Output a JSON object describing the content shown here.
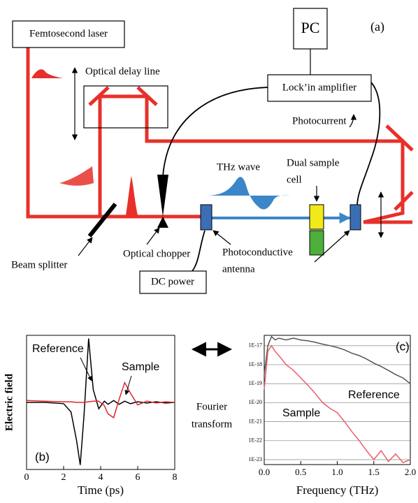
{
  "diagram": {
    "femtosecond_laser": "Femtosecond laser",
    "pc": "PC",
    "panel_a": "(a)",
    "optical_delay_line": "Optical delay line",
    "lockin_amplifier": "Lock’in amplifier",
    "photocurrent": "Photocurrent",
    "thz_wave": "THz wave",
    "dual_sample_cell": [
      "Dual sample",
      "cell"
    ],
    "beam_splitter": "Beam splitter",
    "optical_chopper": "Optical chopper",
    "dc_power": "DC power",
    "photoconductive_antenna": [
      "Photoconductive",
      "antenna"
    ],
    "fourier_transform": [
      "Fourier",
      "transform"
    ]
  },
  "chart_data": [
    {
      "type": "line",
      "panel_label": "(b)",
      "x_label": "Time (ps)",
      "y_label": "Electric field",
      "xlim": [
        0,
        8
      ],
      "xticks": [
        0,
        2,
        4,
        6,
        8
      ],
      "ylim": [
        -1.05,
        1.05
      ],
      "grid": false,
      "x": [
        0,
        1,
        2,
        2.4,
        2.7,
        2.9,
        3.1,
        3.35,
        3.6,
        3.9,
        4.2,
        4.4,
        4.7,
        5.0,
        5.3,
        5.6,
        6,
        6.5,
        7,
        7.5,
        8
      ],
      "series": [
        {
          "name": "Reference",
          "color": "#000000",
          "values": [
            0,
            0,
            -0.02,
            -0.15,
            -0.6,
            -0.98,
            -0.2,
            1.0,
            0.2,
            -0.1,
            0.02,
            -0.03,
            0.03,
            -0.03,
            0.02,
            -0.02,
            0.01,
            -0.01,
            0.01,
            -0.01,
            0
          ]
        },
        {
          "name": "Sample",
          "color": "#e0262c",
          "values": [
            0.03,
            0.02,
            0.01,
            0.01,
            0,
            0,
            0,
            0.01,
            0.02,
            0.02,
            -0.05,
            -0.18,
            -0.24,
            0.05,
            0.31,
            0.15,
            -0.04,
            0.02,
            -0.01,
            0.01,
            0
          ]
        }
      ]
    },
    {
      "type": "line",
      "panel_label": "(c)",
      "x_label": "Frequency (THz)",
      "log_y": true,
      "grid": true,
      "xlim": [
        0,
        2
      ],
      "xticks": [
        {
          "value": 0,
          "label": "0.0"
        },
        {
          "value": 0.5,
          "label": "0.5"
        },
        {
          "value": 1,
          "label": "1.0"
        },
        {
          "value": 1.5,
          "label": "1.5"
        },
        {
          "value": 2,
          "label": "2.0"
        }
      ],
      "ylim": [
        5.5e-24,
        3.5e-17
      ],
      "yticks": [
        {
          "value": 1e-17,
          "label": "1E-17"
        },
        {
          "value": 1e-18,
          "label": "1E-18"
        },
        {
          "value": 1e-19,
          "label": "1E-19"
        },
        {
          "value": 1e-20,
          "label": "1E-20"
        },
        {
          "value": 1e-21,
          "label": "1E-21"
        },
        {
          "value": 1e-22,
          "label": "1E-22"
        },
        {
          "value": 1e-23,
          "label": "1E-23"
        }
      ],
      "x": [
        0,
        0.05,
        0.1,
        0.15,
        0.2,
        0.3,
        0.4,
        0.5,
        0.6,
        0.7,
        0.8,
        0.9,
        1.0,
        1.1,
        1.2,
        1.3,
        1.4,
        1.5,
        1.6,
        1.7,
        1.8,
        1.9,
        2.0
      ],
      "series": [
        {
          "name": "Reference",
          "color": "#555555",
          "values": [
            3e-19,
            1e-17,
            3e-17,
            2e-17,
            2.5e-17,
            2e-17,
            2.5e-17,
            2e-17,
            1.8e-17,
            1.5e-17,
            1.2e-17,
            1e-17,
            8e-18,
            6e-18,
            4e-18,
            3e-18,
            2e-18,
            1.2e-18,
            8e-19,
            5e-19,
            3e-19,
            2e-19,
            1e-19
          ]
        },
        {
          "name": "Sample",
          "color": "#e8606a",
          "values": [
            5e-20,
            5e-18,
            1e-17,
            5e-18,
            3e-18,
            1e-18,
            5e-19,
            2e-19,
            8e-20,
            3e-20,
            1e-20,
            5e-21,
            3e-21,
            1e-21,
            3e-22,
            1e-22,
            3e-23,
            1e-23,
            3e-23,
            8e-24,
            2e-23,
            7e-24,
            1e-23
          ]
        }
      ]
    }
  ]
}
